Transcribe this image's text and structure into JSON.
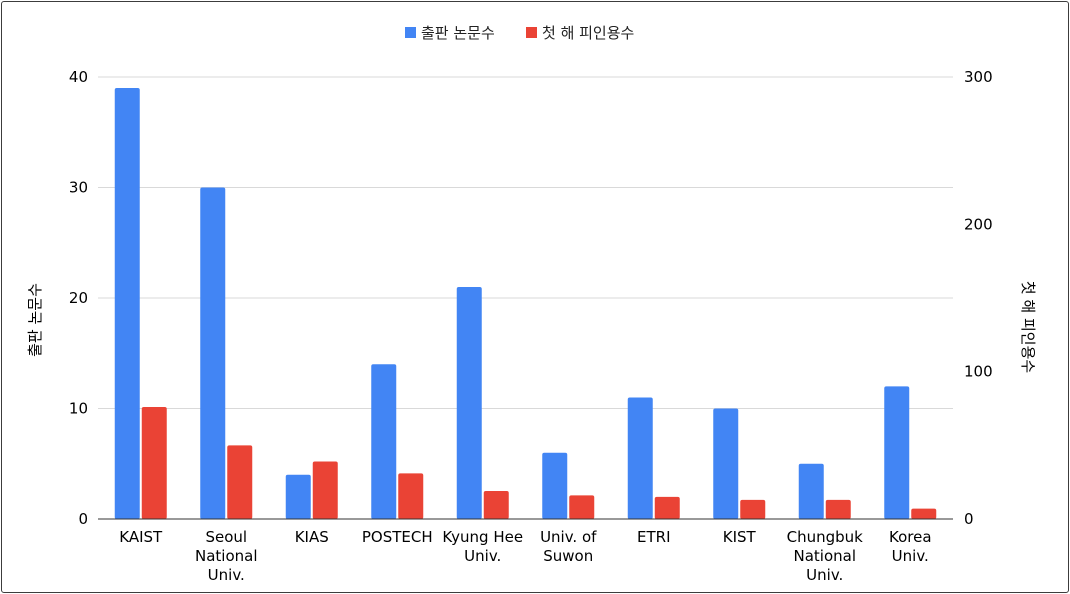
{
  "chart_data": {
    "type": "bar",
    "title": "",
    "categories": [
      [
        "KAIST"
      ],
      [
        "Seoul",
        "National",
        "Univ."
      ],
      [
        "KIAS"
      ],
      [
        "POSTECH"
      ],
      [
        "Kyung Hee",
        "Univ."
      ],
      [
        "Univ. of",
        "Suwon"
      ],
      [
        "ETRI"
      ],
      [
        "KIST"
      ],
      [
        "Chungbuk",
        "National",
        "Univ."
      ],
      [
        "Korea",
        "Univ."
      ]
    ],
    "series": [
      {
        "name": "출판 논문수",
        "axis": "left",
        "color": "#4285f4",
        "values": [
          39,
          30,
          4,
          14,
          21,
          6,
          11,
          10,
          5,
          12
        ]
      },
      {
        "name": "첫 해 피인용수",
        "axis": "right",
        "color": "#ea4335",
        "values": [
          76,
          50,
          39,
          31,
          19,
          16,
          15,
          13,
          13,
          7
        ]
      }
    ],
    "ylabel_left": "출판 논문수",
    "ylabel_right": "첫 해 피인용수",
    "ylim_left": [
      0,
      40
    ],
    "ylim_right": [
      0,
      300
    ],
    "yticks_left": [
      0,
      10,
      20,
      30,
      40
    ],
    "yticks_right": [
      0,
      100,
      200,
      300
    ],
    "grid": true,
    "legend_position": "top-center"
  }
}
